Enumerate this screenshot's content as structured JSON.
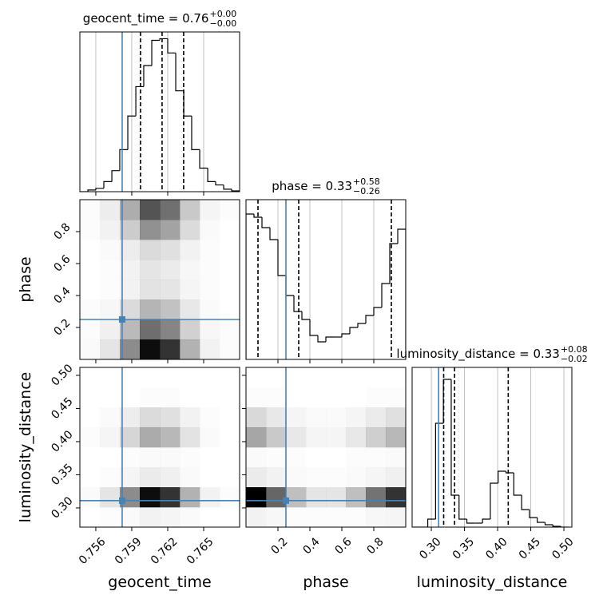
{
  "chart_data": {
    "type": "corner",
    "grid": true,
    "parameters": [
      {
        "name": "geocent_time",
        "title": "geocent_time = 0.76",
        "upper": "+0.00",
        "lower": "−0.00",
        "lim": [
          0.75467,
          0.768
        ],
        "ticks": [
          0.756,
          0.759,
          0.762,
          0.765
        ],
        "truth": 0.7582,
        "quantiles": [
          0.75973,
          0.76153,
          0.76333
        ],
        "hist": {
          "bins": [
            0.75467,
            0.75534,
            0.756,
            0.75667,
            0.75734,
            0.758,
            0.75867,
            0.75934,
            0.76,
            0.76067,
            0.76134,
            0.762,
            0.76267,
            0.76334,
            0.764,
            0.76467,
            0.76534,
            0.766,
            0.76667,
            0.76734,
            0.768
          ],
          "counts": [
            0,
            2,
            4,
            12,
            25,
            50,
            90,
            125,
            150,
            180,
            182,
            165,
            120,
            90,
            50,
            28,
            12,
            8,
            3,
            1
          ],
          "ylim": [
            0,
            190
          ]
        }
      },
      {
        "name": "phase",
        "title": "phase = 0.33",
        "upper": "+0.58",
        "lower": "−0.26",
        "lim": [
          0.0,
          1.0
        ],
        "ticks": [
          0.2,
          0.4,
          0.6,
          0.8
        ],
        "truth": 0.25,
        "quantiles": [
          0.075,
          0.33,
          0.91
        ],
        "hist": {
          "bins": [
            0,
            0.05,
            0.1,
            0.15,
            0.2,
            0.25,
            0.3,
            0.35,
            0.4,
            0.45,
            0.5,
            0.55,
            0.6,
            0.65,
            0.7,
            0.75,
            0.8,
            0.85,
            0.9,
            0.95,
            1.0
          ],
          "counts": [
            182,
            178,
            165,
            150,
            105,
            80,
            60,
            50,
            30,
            22,
            28,
            28,
            32,
            40,
            45,
            55,
            65,
            95,
            145,
            163
          ],
          "ylim": [
            0,
            200
          ]
        }
      },
      {
        "name": "luminosity_distance",
        "title": "luminosity_distance = 0.33",
        "upper": "+0.08",
        "lower": "−0.02",
        "lim": [
          0.271,
          0.512
        ],
        "ticks": [
          {
            "value": 0.3,
            "label": "0.30"
          },
          0.35,
          {
            "value": 0.4,
            "label": "0.40"
          },
          0.45,
          {
            "value": 0.5,
            "label": "0.50"
          }
        ],
        "truth": 0.311,
        "quantiles": [
          0.3186,
          0.335,
          0.416
        ],
        "hist": {
          "bins": [
            0.271,
            0.2828,
            0.2946,
            0.3064,
            0.3182,
            0.33,
            0.3418,
            0.3536,
            0.3654,
            0.3772,
            0.389,
            0.4008,
            0.4126,
            0.4244,
            0.4362,
            0.448,
            0.4598,
            0.4716,
            0.4834,
            0.4952,
            0.507
          ],
          "counts": [
            0,
            0,
            10,
            130,
            185,
            40,
            10,
            5,
            5,
            10,
            55,
            70,
            68,
            40,
            22,
            12,
            6,
            3,
            1,
            0
          ],
          "ylim": [
            0,
            200
          ]
        }
      }
    ],
    "density": [
      [
        [
          0.02,
          0.1,
          0.45,
          0.95,
          0.8,
          0.3,
          0.05,
          0.01
        ],
        [
          0.01,
          0.06,
          0.27,
          0.57,
          0.48,
          0.18,
          0.03,
          0.01
        ],
        [
          0.01,
          0.03,
          0.14,
          0.29,
          0.24,
          0.09,
          0.02,
          0
        ],
        [
          0,
          0.01,
          0.05,
          0.11,
          0.1,
          0.04,
          0.01,
          0
        ],
        [
          0,
          0.01,
          0.05,
          0.1,
          0.08,
          0.03,
          0.01,
          0
        ],
        [
          0,
          0.02,
          0.07,
          0.14,
          0.12,
          0.05,
          0.01,
          0
        ],
        [
          0.01,
          0.05,
          0.2,
          0.43,
          0.36,
          0.14,
          0.02,
          0
        ],
        [
          0.01,
          0.07,
          0.32,
          0.67,
          0.56,
          0.21,
          0.04,
          0.01
        ]
      ],
      [
        [
          0,
          0.01,
          0.02,
          0.05,
          0.04,
          0.02,
          0,
          0
        ],
        [
          0.02,
          0.1,
          0.45,
          0.95,
          0.8,
          0.3,
          0.05,
          0.01
        ],
        [
          0,
          0.01,
          0.04,
          0.08,
          0.06,
          0.02,
          0,
          0
        ],
        [
          0,
          0,
          0.01,
          0.02,
          0.02,
          0.01,
          0,
          0
        ],
        [
          0.01,
          0.04,
          0.16,
          0.33,
          0.28,
          0.11,
          0.02,
          0
        ],
        [
          0,
          0.02,
          0.07,
          0.14,
          0.12,
          0.05,
          0.01,
          0
        ],
        [
          0,
          0,
          0,
          0.01,
          0.01,
          0,
          0,
          0
        ],
        [
          0,
          0,
          0,
          0,
          0,
          0,
          0,
          0
        ]
      ],
      [
        [
          0.05,
          0.03,
          0.01,
          0.01,
          0.01,
          0.01,
          0.03,
          0.04
        ],
        [
          1,
          0.6,
          0.25,
          0.1,
          0.1,
          0.25,
          0.55,
          0.8
        ],
        [
          0.08,
          0.05,
          0.02,
          0.01,
          0.01,
          0.02,
          0.04,
          0.06
        ],
        [
          0.02,
          0.01,
          0.01,
          0,
          0,
          0.01,
          0.01,
          0.02
        ],
        [
          0.35,
          0.21,
          0.09,
          0.04,
          0.04,
          0.09,
          0.19,
          0.28
        ],
        [
          0.15,
          0.09,
          0.04,
          0.02,
          0.02,
          0.04,
          0.08,
          0.12
        ],
        [
          0.01,
          0.01,
          0,
          0,
          0,
          0,
          0.01,
          0.01
        ],
        [
          0,
          0,
          0,
          0,
          0,
          0,
          0,
          0
        ]
      ]
    ]
  }
}
